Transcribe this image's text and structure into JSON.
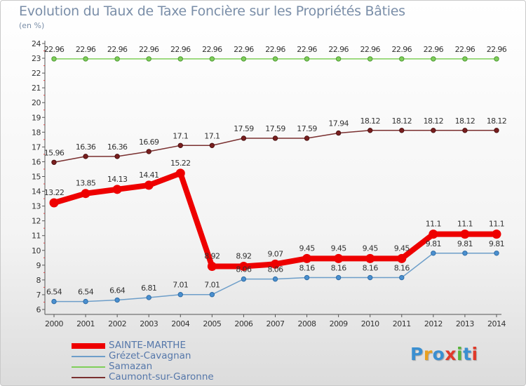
{
  "title": "Evolution du Taux de Taxe Foncière sur les Propriétés Bâties",
  "subtitle": "(en %)",
  "logo": {
    "text": "Proxiti",
    "colors": [
      "#3a8fd1",
      "#e8a020",
      "#3a8fd1",
      "#e03a2a",
      "#58b43a",
      "#3a8fd1",
      "#e03a2a"
    ]
  },
  "chart_data": {
    "type": "line",
    "x": [
      2000,
      2001,
      2002,
      2003,
      2004,
      2005,
      2006,
      2007,
      2008,
      2009,
      2010,
      2011,
      2012,
      2013,
      2014
    ],
    "ylim": [
      6,
      24
    ],
    "yticks": [
      6,
      7,
      8,
      9,
      10,
      11,
      12,
      13,
      14,
      15,
      16,
      17,
      18,
      19,
      20,
      21,
      22,
      23,
      24
    ],
    "grid": false,
    "legend_position": "bottom-left",
    "series": [
      {
        "name": "SAINTE-MARTHE",
        "color": "#ee0000",
        "values": [
          13.22,
          13.85,
          14.13,
          14.41,
          15.22,
          8.92,
          8.92,
          9.07,
          9.45,
          9.45,
          9.45,
          9.45,
          11.1,
          11.1,
          11.1
        ],
        "labels": [
          "13.22",
          "13.85",
          "14.13",
          "14.41",
          "15.22",
          "8.92",
          "8.92",
          "9.07",
          "9.45",
          "9.45",
          "9.45",
          "9.45",
          "11.1",
          "11.1",
          "11.1"
        ]
      },
      {
        "name": "Grézet-Cavagnan",
        "color": "#6d9ec9",
        "values": [
          6.54,
          6.54,
          6.64,
          6.81,
          7.01,
          7.01,
          8.06,
          8.06,
          8.16,
          8.16,
          8.16,
          8.16,
          9.81,
          9.81,
          9.81
        ],
        "labels": [
          "6.54",
          "6.54",
          "6.64",
          "6.81",
          "7.01",
          "7.01",
          "8.06",
          "8.06",
          "8.16",
          "8.16",
          "8.16",
          "8.16",
          "9.81",
          "9.81",
          "9.81"
        ]
      },
      {
        "name": "Samazan",
        "color": "#7fcf5a",
        "values": [
          22.96,
          22.96,
          22.96,
          22.96,
          22.96,
          22.96,
          22.96,
          22.96,
          22.96,
          22.96,
          22.96,
          22.96,
          22.96,
          22.96,
          22.96
        ],
        "labels": [
          "22.96",
          "22.96",
          "22.96",
          "22.96",
          "22.96",
          "22.96",
          "22.96",
          "22.96",
          "22.96",
          "22.96",
          "22.96",
          "22.96",
          "22.96",
          "22.96",
          "22.96"
        ]
      },
      {
        "name": "Caumont-sur-Garonne",
        "color": "#7a3030",
        "values": [
          15.96,
          16.36,
          16.36,
          16.69,
          17.1,
          17.1,
          17.59,
          17.59,
          17.59,
          17.94,
          18.12,
          18.12,
          18.12,
          18.12,
          18.12
        ],
        "labels": [
          "15.96",
          "16.36",
          "16.36",
          "16.69",
          "17.1",
          "17.1",
          "17.59",
          "17.59",
          "17.59",
          "17.94",
          "18.12",
          "18.12",
          "18.12",
          "18.12",
          "18.12"
        ]
      }
    ]
  }
}
